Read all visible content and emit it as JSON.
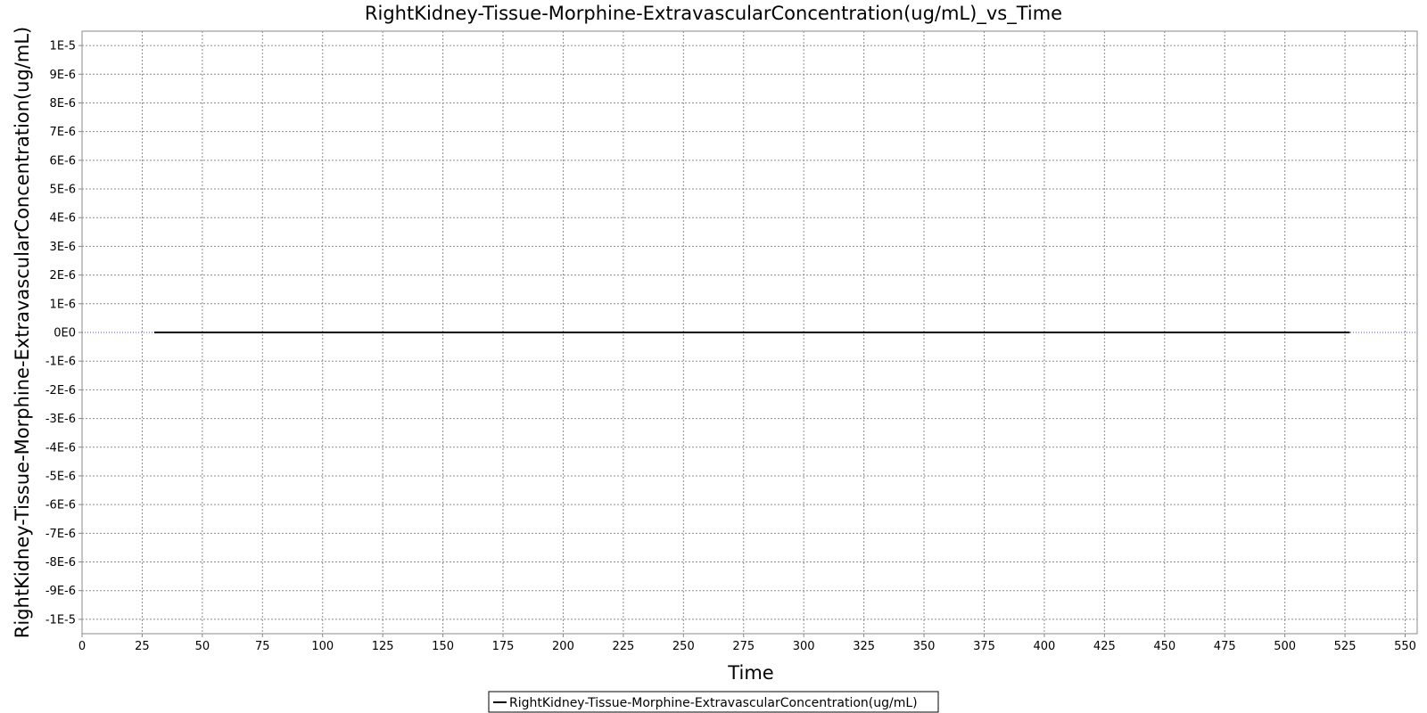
{
  "chart_data": {
    "type": "line",
    "title": "RightKidney-Tissue-Morphine-ExtravascularConcentration(ug/mL)_vs_Time",
    "xlabel": "Time",
    "ylabel": "RightKidney-Tissue-Morphine-ExtravascularConcentration(ug/mL)",
    "xlim": [
      0,
      555
    ],
    "ylim": [
      -1.05e-05,
      1.05e-05
    ],
    "x_ticks": [
      0,
      25,
      50,
      75,
      100,
      125,
      150,
      175,
      200,
      225,
      250,
      275,
      300,
      325,
      350,
      375,
      400,
      425,
      450,
      475,
      500,
      525,
      550
    ],
    "x_tick_labels": [
      "0",
      "25",
      "50",
      "75",
      "100",
      "125",
      "150",
      "175",
      "200",
      "225",
      "250",
      "275",
      "300",
      "325",
      "350",
      "375",
      "400",
      "425",
      "450",
      "475",
      "500",
      "525",
      "550"
    ],
    "y_ticks": [
      1e-05,
      9e-06,
      8e-06,
      7e-06,
      6e-06,
      5e-06,
      4e-06,
      3e-06,
      2e-06,
      1e-06,
      0,
      -1e-06,
      -2e-06,
      -3e-06,
      -4e-06,
      -5e-06,
      -6e-06,
      -7e-06,
      -8e-06,
      -9e-06,
      -1e-05
    ],
    "y_tick_labels": [
      "1E-5",
      "9E-6",
      "8E-6",
      "7E-6",
      "6E-6",
      "5E-6",
      "4E-6",
      "3E-6",
      "2E-6",
      "1E-6",
      "0E0",
      "-1E-6",
      "-2E-6",
      "-3E-6",
      "-4E-6",
      "-5E-6",
      "-6E-6",
      "-7E-6",
      "-8E-6",
      "-9E-6",
      "-1E-5"
    ],
    "grid": true,
    "legend_position": "bottom-center",
    "series": [
      {
        "name": "RightKidney-Tissue-Morphine-ExtravascularConcentration(ug/mL)",
        "color": "#000000",
        "x": [
          30,
          527
        ],
        "y": [
          0,
          0
        ]
      }
    ]
  }
}
